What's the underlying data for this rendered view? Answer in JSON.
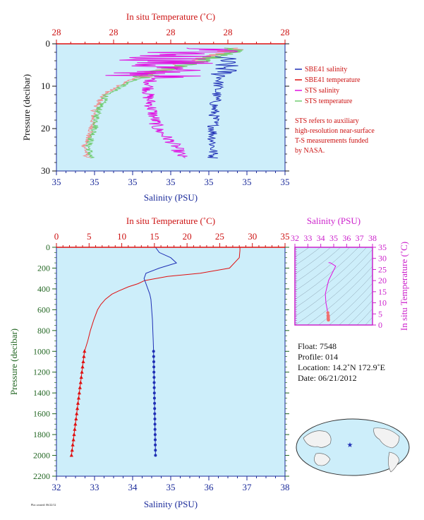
{
  "colors": {
    "plot_bg": "#cdeefa",
    "sbe_salinity": "#1f2fb5",
    "sbe_temperature": "#e01010",
    "sts_salinity": "#e010e0",
    "sts_temperature": "#70cc70",
    "sts_temperature_pink": "#f09090",
    "axis_red": "#cc1111",
    "axis_blue": "#1a2a9a",
    "axis_green": "#226622",
    "axis_magenta": "#cc22cc"
  },
  "legend": {
    "items": [
      {
        "label": "SBE41 salinity",
        "color": "#1f2fb5"
      },
      {
        "label": "SBE41 temperature",
        "color": "#e01010"
      },
      {
        "label": "STS salinity",
        "color": "#e010e0"
      },
      {
        "label": "STS temperature",
        "color": "#70cc70"
      }
    ],
    "note_lines": [
      "STS refers to auxiliary",
      "high-resolution near-surface",
      "T-S measurements funded",
      "by NASA."
    ]
  },
  "info": {
    "float": "Float:  7548",
    "profile": "Profile:  014",
    "location": "Location:  14.2˚N  172.9˚E",
    "date": "Date:  06/21/2012"
  },
  "footer_text": "Plot created: 06/22/12",
  "chart_data": [
    {
      "type": "line",
      "id": "near-surface",
      "top_label": "In situ Temperature (˚C)",
      "top_ticks": [
        "28",
        "28",
        "28",
        "28",
        "28"
      ],
      "bottom_label": "Salinity (PSU)",
      "bottom_ticks": [
        "35",
        "35",
        "35",
        "35",
        "35",
        "35",
        "35"
      ],
      "ylabel": "Pressure (decibar)",
      "ylim": [
        0,
        30
      ],
      "yticks": [
        0,
        10,
        20,
        30
      ],
      "series": [
        {
          "name": "SBE41 salinity",
          "axis": "bottom",
          "x_frac": [
            0.73,
            0.74,
            0.71,
            0.7,
            0.69,
            0.69,
            0.685,
            0.685,
            0.685
          ],
          "pressure": [
            3,
            6,
            9,
            12,
            15,
            18,
            21,
            24,
            27
          ]
        },
        {
          "name": "STS salinity",
          "axis": "bottom",
          "x_frac": [
            0.62,
            0.52,
            0.44,
            0.41,
            0.4,
            0.42,
            0.44,
            0.52,
            0.55
          ],
          "pressure": [
            1,
            3,
            6,
            9,
            12,
            16,
            20,
            24,
            27
          ]
        },
        {
          "name": "STS temperature",
          "axis": "top",
          "x_frac": [
            0.79,
            0.7,
            0.48,
            0.32,
            0.22,
            0.18,
            0.17,
            0.14,
            0.15
          ],
          "pressure": [
            1,
            3,
            6,
            9,
            12,
            16,
            20,
            24,
            27
          ]
        }
      ]
    },
    {
      "type": "line",
      "id": "full-profile",
      "top_label": "In situ Temperature (˚C)",
      "top_xlim": [
        0,
        35
      ],
      "top_ticks": [
        0,
        5,
        10,
        15,
        20,
        25,
        30,
        35
      ],
      "bottom_label": "Salinity (PSU)",
      "bottom_xlim": [
        32,
        38
      ],
      "bottom_ticks": [
        32,
        33,
        34,
        35,
        36,
        37,
        38
      ],
      "ylabel": "Pressure (decibar)",
      "ylim": [
        0,
        2200
      ],
      "yticks": [
        0,
        200,
        400,
        600,
        800,
        1000,
        1200,
        1400,
        1600,
        1800,
        2000,
        2200
      ],
      "series": [
        {
          "name": "SBE41 temperature",
          "axis": "top",
          "pressure": [
            0,
            30,
            100,
            200,
            250,
            280,
            320,
            350,
            380,
            420,
            450,
            500,
            550,
            600,
            700,
            800,
            900,
            1000,
            1200,
            1400,
            1600,
            1800,
            2000
          ],
          "values": [
            28.1,
            28.1,
            28.0,
            26.5,
            22.0,
            17.0,
            13.5,
            12.5,
            11.0,
            9.5,
            8.5,
            7.5,
            6.8,
            6.3,
            5.7,
            5.2,
            4.8,
            4.3,
            3.9,
            3.5,
            3.1,
            2.7,
            2.3
          ]
        },
        {
          "name": "SBE41 salinity",
          "axis": "bottom",
          "pressure": [
            0,
            50,
            100,
            150,
            200,
            250,
            300,
            350,
            400,
            450,
            500,
            600,
            700,
            800,
            900,
            1000,
            1200,
            1400,
            1600,
            1800,
            2000
          ],
          "values": [
            34.6,
            34.7,
            35.0,
            35.15,
            34.7,
            34.35,
            34.3,
            34.35,
            34.4,
            34.45,
            34.48,
            34.5,
            34.52,
            34.53,
            34.54,
            34.55,
            34.56,
            34.57,
            34.58,
            34.59,
            34.6
          ]
        }
      ],
      "markers_from_pressure": 1000,
      "marker_step": 50
    },
    {
      "type": "scatter",
      "id": "ts-diagram",
      "top_label": "Salinity (PSU)",
      "xlim": [
        32,
        38
      ],
      "xticks": [
        32,
        33,
        34,
        35,
        36,
        37,
        38
      ],
      "right_label": "In situ Temperature (˚C)",
      "ylim": [
        0,
        35
      ],
      "yticks": [
        0,
        5,
        10,
        15,
        20,
        25,
        30,
        35
      ],
      "salinity": [
        34.6,
        34.75,
        35.15,
        34.6,
        34.35,
        34.4,
        34.5,
        34.55,
        34.56,
        34.58,
        34.6
      ],
      "temperature": [
        28.1,
        28.0,
        26.5,
        20,
        14,
        10,
        7,
        5.5,
        4.3,
        3.5,
        2.3
      ]
    }
  ]
}
